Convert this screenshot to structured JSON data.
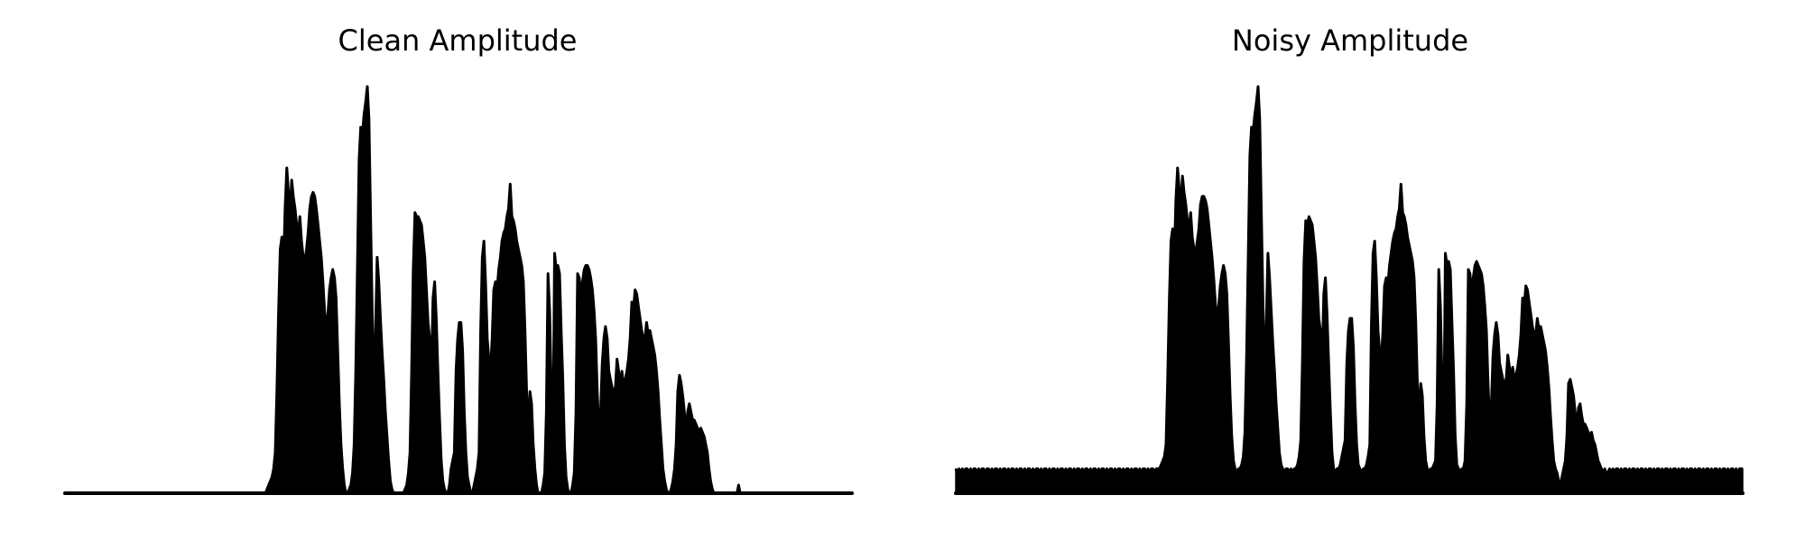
{
  "chart_data": [
    {
      "type": "area",
      "title": "Clean Amplitude",
      "xlabel": "",
      "ylabel": "",
      "axes_visible": false,
      "grid": false,
      "baseline": 0.0,
      "ylim": [
        0,
        1.0
      ],
      "color": "#000000",
      "series": [
        {
          "values": [
            0.0,
            0.0,
            0.0,
            0.0,
            0.0,
            0.0,
            0.0,
            0.0,
            0.0,
            0.0,
            0.0,
            0.0,
            0.0,
            0.0,
            0.0,
            0.0,
            0.0,
            0.0,
            0.0,
            0.0,
            0.0,
            0.0,
            0.0,
            0.0,
            0.0,
            0.0,
            0.0,
            0.0,
            0.0,
            0.0,
            0.0,
            0.0,
            0.0,
            0.0,
            0.0,
            0.0,
            0.0,
            0.0,
            0.0,
            0.0,
            0.0,
            0.0,
            0.0,
            0.0,
            0.0,
            0.0,
            0.0,
            0.0,
            0.0,
            0.0,
            0.0,
            0.0,
            0.0,
            0.0,
            0.0,
            0.0,
            0.0,
            0.0,
            0.0,
            0.0,
            0.0,
            0.0,
            0.0,
            0.0,
            0.0,
            0.0,
            0.0,
            0.0,
            0.0,
            0.0,
            0.0,
            0.0,
            0.0,
            0.0,
            0.0,
            0.0,
            0.0,
            0.0,
            0.0,
            0.0,
            0.0,
            0.0,
            0.0,
            0.0,
            0.0,
            0.0,
            0.0,
            0.0,
            0.0,
            0.0,
            0.0,
            0.0,
            0.0,
            0.0,
            0.0,
            0.0,
            0.0,
            0.0,
            0.0,
            0.0,
            0.0,
            0.0,
            0.0,
            0.0,
            0.0,
            0.0,
            0.0,
            0.0,
            0.0,
            0.0,
            0.0,
            0.0,
            0.0,
            0.0,
            0.0,
            0.0,
            0.0,
            0.0,
            0.0,
            0.0,
            0.0,
            0.0,
            0.0,
            0.01,
            0.02,
            0.03,
            0.04,
            0.06,
            0.1,
            0.25,
            0.45,
            0.6,
            0.63,
            0.55,
            0.7,
            0.8,
            0.74,
            0.69,
            0.77,
            0.73,
            0.7,
            0.66,
            0.64,
            0.68,
            0.62,
            0.58,
            0.57,
            0.6,
            0.64,
            0.7,
            0.73,
            0.74,
            0.73,
            0.7,
            0.66,
            0.62,
            0.58,
            0.52,
            0.45,
            0.4,
            0.44,
            0.5,
            0.53,
            0.55,
            0.53,
            0.48,
            0.35,
            0.22,
            0.12,
            0.06,
            0.02,
            0.0,
            0.0,
            0.01,
            0.02,
            0.05,
            0.12,
            0.3,
            0.55,
            0.82,
            0.9,
            0.88,
            0.93,
            0.96,
            1.0,
            0.92,
            0.68,
            0.45,
            0.25,
            0.4,
            0.58,
            0.52,
            0.43,
            0.35,
            0.28,
            0.2,
            0.14,
            0.08,
            0.03,
            0.01,
            0.0,
            0.0,
            0.0,
            0.0,
            0.0,
            0.0,
            0.0,
            0.01,
            0.02,
            0.05,
            0.1,
            0.3,
            0.55,
            0.69,
            0.68,
            0.68,
            0.67,
            0.66,
            0.62,
            0.58,
            0.5,
            0.42,
            0.38,
            0.3,
            0.48,
            0.52,
            0.43,
            0.3,
            0.18,
            0.08,
            0.03,
            0.01,
            0.0,
            0.0,
            0.02,
            0.06,
            0.08,
            0.1,
            0.3,
            0.38,
            0.42,
            0.42,
            0.35,
            0.2,
            0.1,
            0.04,
            0.02,
            0.0,
            0.0,
            0.02,
            0.04,
            0.06,
            0.1,
            0.4,
            0.58,
            0.62,
            0.52,
            0.38,
            0.33,
            0.3,
            0.38,
            0.5,
            0.52,
            0.5,
            0.55,
            0.58,
            0.62,
            0.64,
            0.65,
            0.68,
            0.7,
            0.76,
            0.68,
            0.67,
            0.65,
            0.62,
            0.6,
            0.58,
            0.56,
            0.52,
            0.4,
            0.25,
            0.15,
            0.25,
            0.22,
            0.12,
            0.06,
            0.02,
            0.0,
            0.0,
            0.0,
            0.02,
            0.05,
            0.2,
            0.54,
            0.45,
            0.25,
            0.1,
            0.59,
            0.55,
            0.56,
            0.54,
            0.4,
            0.28,
            0.12,
            0.04,
            0.01,
            0.0,
            0.0,
            0.02,
            0.05,
            0.2,
            0.54,
            0.53,
            0.48,
            0.52,
            0.55,
            0.56,
            0.56,
            0.55,
            0.53,
            0.5,
            0.45,
            0.38,
            0.25,
            0.15,
            0.2,
            0.32,
            0.38,
            0.41,
            0.38,
            0.3,
            0.28,
            0.26,
            0.25,
            0.26,
            0.33,
            0.3,
            0.26,
            0.3,
            0.26,
            0.28,
            0.3,
            0.33,
            0.38,
            0.47,
            0.45,
            0.5,
            0.49,
            0.46,
            0.43,
            0.4,
            0.38,
            0.38,
            0.42,
            0.39,
            0.4,
            0.38,
            0.36,
            0.34,
            0.3,
            0.25,
            0.18,
            0.12,
            0.06,
            0.03,
            0.01,
            0.0,
            0.0,
            0.01,
            0.03,
            0.06,
            0.12,
            0.25,
            0.29,
            0.27,
            0.24,
            0.2,
            0.15,
            0.2,
            0.22,
            0.2,
            0.18,
            0.18,
            0.17,
            0.16,
            0.15,
            0.16,
            0.15,
            0.14,
            0.12,
            0.1,
            0.06,
            0.03,
            0.01,
            0.0,
            0.0,
            0.0,
            0.0,
            0.0,
            0.0,
            0.0,
            0.0,
            0.0,
            0.0,
            0.0,
            0.0,
            0.0,
            0.0,
            0.0,
            0.02,
            0.0,
            0.0,
            0.0,
            0.0,
            0.0,
            0.0,
            0.0,
            0.0,
            0.0,
            0.0,
            0.0,
            0.0,
            0.0,
            0.0,
            0.0,
            0.0,
            0.0,
            0.0,
            0.0,
            0.0,
            0.0,
            0.0,
            0.0,
            0.0,
            0.0,
            0.0,
            0.0,
            0.0,
            0.0,
            0.0,
            0.0,
            0.0,
            0.0,
            0.0,
            0.0,
            0.0,
            0.0,
            0.0,
            0.0,
            0.0,
            0.0,
            0.0,
            0.0,
            0.0,
            0.0,
            0.0,
            0.0,
            0.0,
            0.0,
            0.0,
            0.0,
            0.0,
            0.0,
            0.0,
            0.0,
            0.0,
            0.0,
            0.0,
            0.0,
            0.0,
            0.0,
            0.0,
            0.0,
            0.0,
            0.0,
            0.0,
            0.0,
            0.0,
            0.0
          ]
        }
      ]
    },
    {
      "type": "area",
      "title": "Noisy Amplitude",
      "xlabel": "",
      "ylabel": "",
      "axes_visible": false,
      "grid": false,
      "baseline": 0.0,
      "ylim": [
        0,
        1.0
      ],
      "color": "#000000",
      "series": [
        {
          "values": [
            0.06,
            0.05,
            0.06,
            0.05,
            0.06,
            0.05,
            0.06,
            0.06,
            0.05,
            0.06,
            0.05,
            0.06,
            0.06,
            0.05,
            0.06,
            0.05,
            0.06,
            0.06,
            0.05,
            0.06,
            0.06,
            0.05,
            0.06,
            0.05,
            0.06,
            0.06,
            0.05,
            0.06,
            0.05,
            0.06,
            0.06,
            0.05,
            0.06,
            0.05,
            0.06,
            0.06,
            0.05,
            0.06,
            0.05,
            0.06,
            0.06,
            0.05,
            0.06,
            0.05,
            0.06,
            0.06,
            0.05,
            0.06,
            0.05,
            0.06,
            0.06,
            0.05,
            0.06,
            0.05,
            0.06,
            0.06,
            0.05,
            0.06,
            0.05,
            0.06,
            0.06,
            0.05,
            0.06,
            0.05,
            0.06,
            0.06,
            0.05,
            0.06,
            0.05,
            0.06,
            0.06,
            0.05,
            0.06,
            0.05,
            0.06,
            0.06,
            0.05,
            0.06,
            0.05,
            0.06,
            0.06,
            0.05,
            0.06,
            0.05,
            0.06,
            0.06,
            0.05,
            0.06,
            0.05,
            0.06,
            0.06,
            0.05,
            0.06,
            0.05,
            0.06,
            0.06,
            0.05,
            0.06,
            0.05,
            0.06,
            0.06,
            0.05,
            0.06,
            0.05,
            0.06,
            0.06,
            0.05,
            0.06,
            0.05,
            0.06,
            0.06,
            0.05,
            0.06,
            0.05,
            0.06,
            0.06,
            0.05,
            0.06,
            0.05,
            0.06,
            0.06,
            0.05,
            0.06,
            0.06,
            0.06,
            0.07,
            0.08,
            0.09,
            0.12,
            0.28,
            0.48,
            0.62,
            0.65,
            0.57,
            0.72,
            0.8,
            0.75,
            0.7,
            0.78,
            0.74,
            0.71,
            0.67,
            0.65,
            0.69,
            0.63,
            0.6,
            0.59,
            0.62,
            0.65,
            0.71,
            0.73,
            0.73,
            0.72,
            0.7,
            0.66,
            0.62,
            0.58,
            0.53,
            0.47,
            0.42,
            0.46,
            0.51,
            0.54,
            0.56,
            0.54,
            0.49,
            0.37,
            0.24,
            0.14,
            0.08,
            0.06,
            0.05,
            0.06,
            0.06,
            0.07,
            0.09,
            0.15,
            0.33,
            0.57,
            0.83,
            0.9,
            0.89,
            0.93,
            0.96,
            1.0,
            0.92,
            0.69,
            0.47,
            0.28,
            0.42,
            0.59,
            0.53,
            0.45,
            0.37,
            0.3,
            0.22,
            0.16,
            0.1,
            0.07,
            0.06,
            0.05,
            0.06,
            0.06,
            0.05,
            0.06,
            0.05,
            0.06,
            0.06,
            0.07,
            0.09,
            0.13,
            0.32,
            0.57,
            0.67,
            0.66,
            0.68,
            0.67,
            0.66,
            0.62,
            0.58,
            0.51,
            0.43,
            0.4,
            0.32,
            0.49,
            0.53,
            0.44,
            0.32,
            0.2,
            0.1,
            0.06,
            0.05,
            0.06,
            0.06,
            0.07,
            0.09,
            0.11,
            0.13,
            0.32,
            0.4,
            0.43,
            0.43,
            0.36,
            0.22,
            0.12,
            0.07,
            0.06,
            0.05,
            0.06,
            0.06,
            0.07,
            0.09,
            0.12,
            0.42,
            0.59,
            0.62,
            0.53,
            0.4,
            0.35,
            0.32,
            0.4,
            0.51,
            0.53,
            0.51,
            0.56,
            0.59,
            0.62,
            0.64,
            0.65,
            0.68,
            0.7,
            0.76,
            0.69,
            0.68,
            0.66,
            0.63,
            0.61,
            0.59,
            0.57,
            0.53,
            0.42,
            0.27,
            0.17,
            0.27,
            0.24,
            0.14,
            0.08,
            0.06,
            0.05,
            0.06,
            0.06,
            0.07,
            0.08,
            0.22,
            0.55,
            0.46,
            0.27,
            0.12,
            0.59,
            0.56,
            0.57,
            0.55,
            0.42,
            0.3,
            0.14,
            0.07,
            0.06,
            0.05,
            0.06,
            0.06,
            0.08,
            0.22,
            0.55,
            0.54,
            0.49,
            0.53,
            0.56,
            0.57,
            0.56,
            0.55,
            0.54,
            0.51,
            0.46,
            0.4,
            0.27,
            0.17,
            0.22,
            0.34,
            0.39,
            0.42,
            0.39,
            0.32,
            0.3,
            0.28,
            0.27,
            0.28,
            0.34,
            0.31,
            0.28,
            0.31,
            0.28,
            0.29,
            0.31,
            0.34,
            0.39,
            0.48,
            0.46,
            0.51,
            0.5,
            0.47,
            0.44,
            0.41,
            0.39,
            0.39,
            0.43,
            0.4,
            0.41,
            0.39,
            0.37,
            0.35,
            0.31,
            0.26,
            0.19,
            0.13,
            0.08,
            0.06,
            0.05,
            0.03,
            0.02,
            0.04,
            0.06,
            0.08,
            0.14,
            0.27,
            0.28,
            0.26,
            0.24,
            0.2,
            0.16,
            0.21,
            0.22,
            0.19,
            0.17,
            0.17,
            0.16,
            0.15,
            0.14,
            0.15,
            0.13,
            0.12,
            0.1,
            0.08,
            0.07,
            0.06,
            0.05,
            0.06,
            0.05,
            0.05,
            0.06,
            0.05,
            0.06,
            0.05,
            0.06,
            0.06,
            0.05,
            0.06,
            0.05,
            0.06,
            0.06,
            0.05,
            0.06,
            0.05,
            0.06,
            0.06,
            0.05,
            0.06,
            0.05,
            0.06,
            0.06,
            0.05,
            0.06,
            0.05,
            0.06,
            0.06,
            0.05,
            0.06,
            0.05,
            0.06,
            0.06,
            0.05,
            0.06,
            0.05,
            0.06,
            0.06,
            0.05,
            0.06,
            0.05,
            0.06,
            0.06,
            0.05,
            0.06,
            0.05,
            0.06,
            0.06,
            0.05,
            0.06,
            0.05,
            0.06,
            0.06,
            0.05,
            0.06,
            0.05,
            0.06,
            0.06,
            0.05,
            0.06,
            0.05,
            0.06,
            0.06,
            0.05,
            0.06,
            0.05,
            0.06,
            0.06,
            0.05,
            0.06,
            0.05,
            0.06,
            0.06,
            0.05,
            0.06,
            0.05,
            0.06,
            0.06,
            0.05,
            0.06,
            0.05,
            0.06,
            0.06,
            0.06
          ]
        }
      ]
    }
  ]
}
